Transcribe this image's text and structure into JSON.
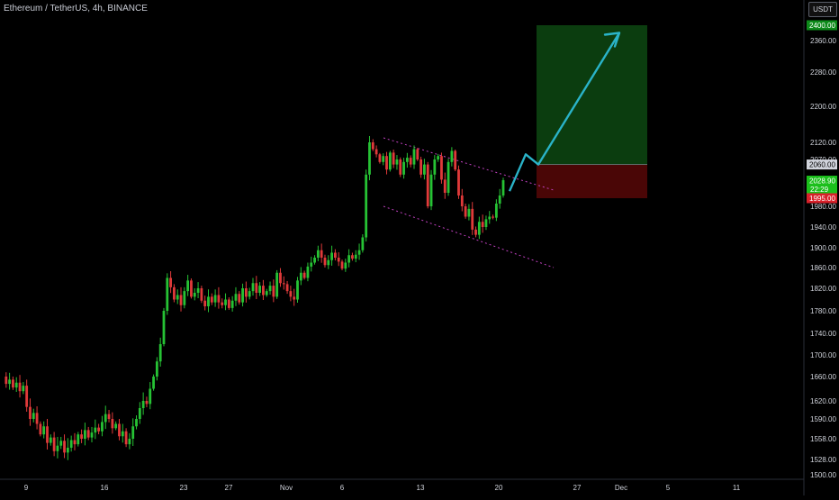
{
  "header": {
    "title": "Ethereum / TetherUS, 4h, BINANCE",
    "currency_button": "USDT"
  },
  "colors": {
    "background": "#000000",
    "up_candle": "#26c234",
    "down_candle": "#e03a3a",
    "channel_line": "#c040c0",
    "projection_arrow": "#2ab3c8",
    "target_zone": "#0b3d0f",
    "stop_zone": "#4a0606",
    "axis_text": "#d1d4dc"
  },
  "chart_data": {
    "type": "candlestick",
    "symbol": "ETH/USDT",
    "interval": "4h",
    "exchange": "BINANCE",
    "ylim": [
      1490,
      2420
    ],
    "y_ticks": [
      1500,
      1528,
      1558,
      1590,
      1620,
      1660,
      1700,
      1740,
      1780,
      1820,
      1860,
      1900,
      1940,
      1980,
      2020,
      2070,
      2120,
      2200,
      2280,
      2360,
      2400
    ],
    "y_tick_labels": [
      "1500.00",
      "1528.00",
      "1558.00",
      "1590.00",
      "1620.00",
      "1660.00",
      "1700.00",
      "1740.00",
      "1780.00",
      "1820.00",
      "1860.00",
      "1900.00",
      "1940.00",
      "1980.00",
      "2020.00",
      "2070.00",
      "2120.00",
      "2200.00",
      "2280.00",
      "2360.00",
      "2400.00"
    ],
    "x_tick_labels": [
      "9",
      "16",
      "23",
      "27",
      "Nov",
      "6",
      "13",
      "20",
      "27",
      "Dec",
      "5",
      "11"
    ],
    "price_labels": [
      {
        "text": "2400.00",
        "value": 2400,
        "bg": "#0d8a1a",
        "fg": "#ffffff"
      },
      {
        "text": "2060.00",
        "value": 2060,
        "bg": "#d1d4dc",
        "fg": "#000000"
      },
      {
        "text": "2028.90",
        "sub": "22:29",
        "value": 2028.9,
        "bg": "#1bbf1b",
        "fg": "#ffffff"
      },
      {
        "text": "1995.00",
        "value": 1995,
        "bg": "#d8202a",
        "fg": "#ffffff"
      }
    ],
    "last_price": 2028.9,
    "countdown": "22:29",
    "long_position": {
      "entry": 2060,
      "target": 2400,
      "stop": 1995
    },
    "channel": {
      "upper": [
        {
          "bar": 0,
          "price": 2130
        },
        {
          "bar": 42,
          "price": 2010
        }
      ],
      "lower": [
        {
          "bar": 0,
          "price": 1980
        },
        {
          "bar": 42,
          "price": 1860
        }
      ]
    },
    "projection_path": [
      2008,
      2085,
      2060,
      2380
    ],
    "price_path": [
      1660,
      1648,
      1655,
      1642,
      1650,
      1636,
      1645,
      1610,
      1590,
      1600,
      1582,
      1565,
      1578,
      1552,
      1560,
      1540,
      1548,
      1555,
      1538,
      1545,
      1556,
      1550,
      1565,
      1558,
      1572,
      1560,
      1568,
      1576,
      1570,
      1585,
      1598,
      1590,
      1575,
      1582,
      1562,
      1570,
      1550,
      1558,
      1578,
      1590,
      1608,
      1620,
      1615,
      1640,
      1660,
      1688,
      1720,
      1780,
      1840,
      1822,
      1800,
      1808,
      1790,
      1815,
      1835,
      1805,
      1812,
      1820,
      1798,
      1788,
      1805,
      1795,
      1808,
      1795,
      1790,
      1800,
      1785,
      1798,
      1810,
      1795,
      1820,
      1805,
      1815,
      1830,
      1812,
      1825,
      1808,
      1815,
      1825,
      1805,
      1850,
      1830,
      1828,
      1815,
      1805,
      1800,
      1835,
      1850,
      1840,
      1862,
      1870,
      1880,
      1895,
      1880,
      1865,
      1875,
      1890,
      1880,
      1872,
      1858,
      1870,
      1885,
      1878,
      1886,
      1895,
      1920,
      2040,
      2120,
      2100,
      2085,
      2065,
      2080,
      2050,
      2090,
      2060,
      2070,
      2040,
      2065,
      2075,
      2060,
      2100,
      2070,
      2040,
      2060,
      1980,
      2040,
      2070,
      2080,
      2030,
      2005,
      2065,
      2095,
      2050,
      2000,
      1980,
      1960,
      1975,
      1935,
      1925,
      1950,
      1940,
      1955,
      1960,
      1958,
      1985,
      2000,
      2028.9
    ]
  }
}
